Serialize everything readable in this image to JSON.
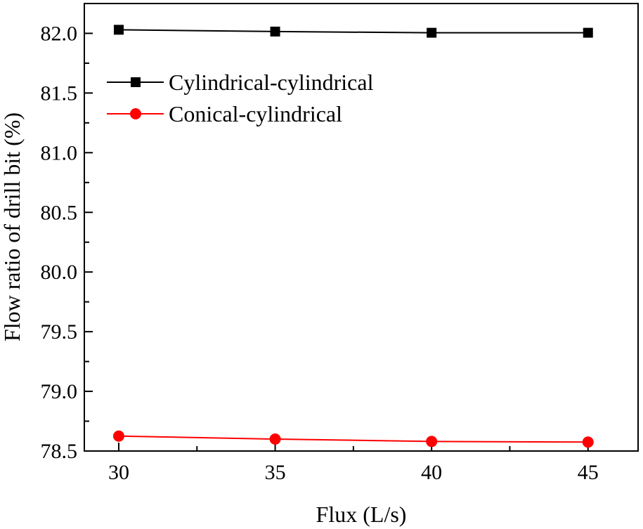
{
  "chart_data": {
    "type": "line",
    "title": "",
    "xlabel": "Flux (L/s)",
    "ylabel": "Flow ratio of drill bit (%)",
    "x": [
      30,
      35,
      40,
      45
    ],
    "xlim": [
      28.9,
      46.6
    ],
    "ylim": [
      78.5,
      82.25
    ],
    "xticks": [
      30,
      35,
      40,
      45
    ],
    "yticks": [
      78.5,
      79.0,
      79.5,
      80.0,
      80.5,
      81.0,
      81.5,
      82.0
    ],
    "ytick_labels": [
      "78.5",
      "79.0",
      "79.5",
      "80.0",
      "80.5",
      "81.0",
      "81.5",
      "82.0"
    ],
    "grid": false,
    "legend_position": "top-left",
    "series": [
      {
        "name": "Cylindrical-cylindrical",
        "values": [
          82.03,
          82.015,
          82.005,
          82.005
        ],
        "color": "#000000",
        "marker": "square"
      },
      {
        "name": "Conical-cylindrical",
        "values": [
          78.625,
          78.6,
          78.58,
          78.575
        ],
        "color": "#ff0000",
        "marker": "circle"
      }
    ]
  }
}
